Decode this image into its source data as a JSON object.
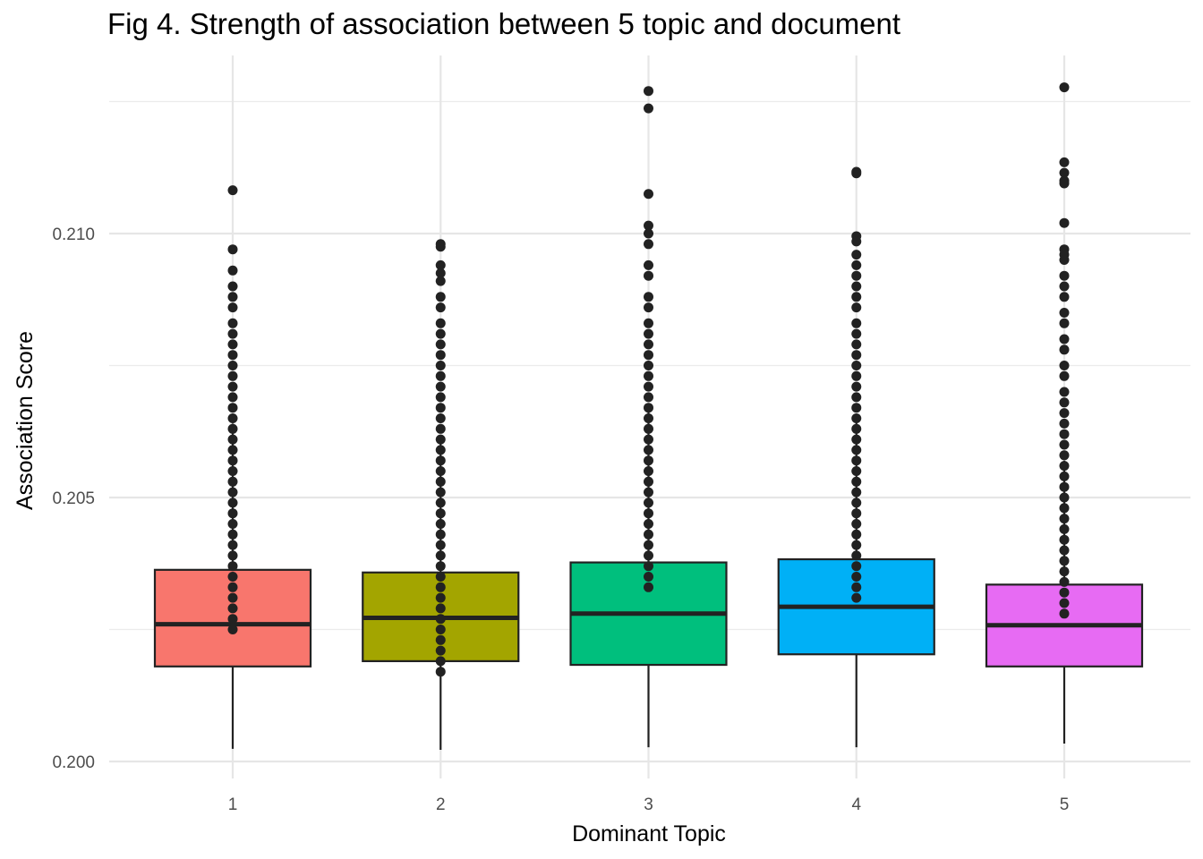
{
  "chart_data": {
    "type": "boxplot",
    "title": "Fig 4. Strength of association between 5 topic and document",
    "xlabel": "Dominant Topic",
    "ylabel": "Association Score",
    "categories": [
      "1",
      "2",
      "3",
      "4",
      "5"
    ],
    "ylim": [
      0.1998,
      0.2141
    ],
    "yticks": [
      0.2,
      0.205,
      0.21
    ],
    "ytick_labels": [
      "0.200",
      "0.205",
      "0.210"
    ],
    "grid": true,
    "legend": "none",
    "boxes": [
      {
        "category": "1",
        "color": "#F8766D",
        "whisker_low": 0.20024,
        "q1": 0.2018,
        "median": 0.2026,
        "q3": 0.20363,
        "whisker_high": 0.2064,
        "outliers": [
          0.21082,
          0.2097,
          0.2093,
          0.209,
          0.2088,
          0.2086,
          0.2083,
          0.2081,
          0.2079,
          0.2077,
          0.2075,
          0.2073,
          0.2071,
          0.2069,
          0.2067,
          0.2065,
          0.2063,
          0.2061,
          0.2059,
          0.2057,
          0.2055,
          0.2053,
          0.2051,
          0.2049,
          0.2047,
          0.2045,
          0.2043,
          0.2041,
          0.2039,
          0.2037,
          0.2035,
          0.2033,
          0.2031,
          0.2029,
          0.2027,
          0.2025
        ]
      },
      {
        "category": "2",
        "color": "#A3A500",
        "whisker_low": 0.20022,
        "q1": 0.2019,
        "median": 0.20272,
        "q3": 0.20358,
        "whisker_high": 0.2061,
        "outliers": [
          0.2098,
          0.20975,
          0.2094,
          0.20925,
          0.2091,
          0.2088,
          0.2086,
          0.2083,
          0.2081,
          0.2079,
          0.2077,
          0.2075,
          0.2073,
          0.2071,
          0.2069,
          0.2067,
          0.2065,
          0.2063,
          0.2061,
          0.2059,
          0.2057,
          0.2055,
          0.2053,
          0.2051,
          0.2049,
          0.2047,
          0.2045,
          0.2043,
          0.2041,
          0.2039,
          0.2037,
          0.2035,
          0.2033,
          0.2031,
          0.2029,
          0.2027,
          0.2025,
          0.2023,
          0.2021,
          0.2019,
          0.2017
        ]
      },
      {
        "category": "3",
        "color": "#00BF7D",
        "whisker_low": 0.20027,
        "q1": 0.20183,
        "median": 0.2028,
        "q3": 0.20377,
        "whisker_high": 0.2067,
        "outliers": [
          0.2127,
          0.21237,
          0.21075,
          0.21015,
          0.21,
          0.2098,
          0.2094,
          0.2092,
          0.2088,
          0.2086,
          0.2083,
          0.2081,
          0.2079,
          0.2077,
          0.2075,
          0.2073,
          0.2071,
          0.2069,
          0.2067,
          0.2065,
          0.2063,
          0.2061,
          0.2059,
          0.2057,
          0.2055,
          0.2053,
          0.2051,
          0.2049,
          0.2047,
          0.2045,
          0.2043,
          0.2041,
          0.2039,
          0.2037,
          0.2035,
          0.2033
        ]
      },
      {
        "category": "4",
        "color": "#00B0F6",
        "whisker_low": 0.20027,
        "q1": 0.20203,
        "median": 0.20293,
        "q3": 0.20383,
        "whisker_high": 0.2065,
        "outliers": [
          0.21117,
          0.21114,
          0.20995,
          0.20985,
          0.2096,
          0.2094,
          0.2092,
          0.209,
          0.2088,
          0.2086,
          0.2083,
          0.2081,
          0.2079,
          0.2077,
          0.2075,
          0.2073,
          0.2071,
          0.2069,
          0.2067,
          0.2065,
          0.2063,
          0.2061,
          0.2059,
          0.2057,
          0.2055,
          0.2053,
          0.2051,
          0.2049,
          0.2047,
          0.2045,
          0.2043,
          0.2041,
          0.2039,
          0.2037,
          0.2035,
          0.2033,
          0.2031
        ]
      },
      {
        "category": "5",
        "color": "#E76BF3",
        "whisker_low": 0.20034,
        "q1": 0.2018,
        "median": 0.20258,
        "q3": 0.20335,
        "whisker_high": 0.2057,
        "outliers": [
          0.21277,
          0.21135,
          0.21115,
          0.211,
          0.21095,
          0.2102,
          0.2097,
          0.2096,
          0.2095,
          0.2092,
          0.209,
          0.2088,
          0.2085,
          0.2083,
          0.208,
          0.2078,
          0.2075,
          0.2073,
          0.207,
          0.2068,
          0.2066,
          0.2064,
          0.2062,
          0.206,
          0.2058,
          0.2056,
          0.2054,
          0.2052,
          0.205,
          0.2048,
          0.2046,
          0.2044,
          0.2042,
          0.204,
          0.2038,
          0.2036,
          0.2034,
          0.2032,
          0.203,
          0.2028
        ]
      }
    ]
  }
}
